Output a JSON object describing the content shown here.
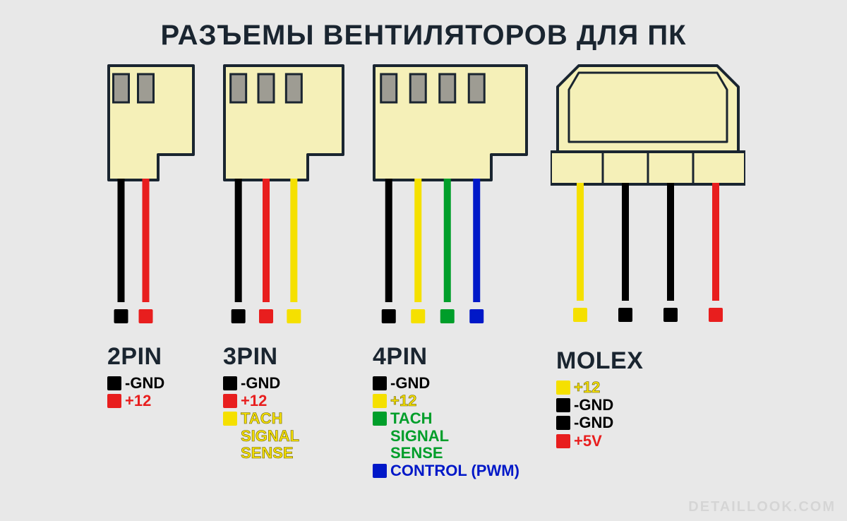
{
  "title": "РАЗЪЕМЫ ВЕНТИЛЯТОРОВ ДЛЯ ПК",
  "watermark": "DETAILLOOK.COM",
  "colors": {
    "background": "#e8e8e8",
    "title_color": "#1a2530",
    "connector_body": "#f5f0b8",
    "connector_stroke": "#1a2530",
    "pin_slot": "#9e9c93",
    "black": "#000000",
    "red": "#e81e1e",
    "yellow": "#f5e000",
    "green": "#009e2a",
    "blue": "#0018c8"
  },
  "stroke_width": 4,
  "wire_width": 10,
  "wire_length": 175,
  "square_size": 20,
  "connectors": [
    {
      "id": "2pin",
      "name": "2PIN",
      "type": "fan-header",
      "body_w": 120,
      "body_h": 162,
      "tab_w": 50,
      "wires": [
        {
          "color": "#000000",
          "label": "-GND",
          "label_color": "#000000"
        },
        {
          "color": "#e81e1e",
          "label": "+12",
          "label_color": "#e81e1e"
        }
      ]
    },
    {
      "id": "3pin",
      "name": "3PIN",
      "type": "fan-header",
      "body_w": 168,
      "body_h": 162,
      "tab_w": 50,
      "wires": [
        {
          "color": "#000000",
          "label": "-GND",
          "label_color": "#000000"
        },
        {
          "color": "#e81e1e",
          "label": "+12",
          "label_color": "#e81e1e"
        },
        {
          "color": "#f5e000",
          "label": "TACH\nSIGNAL\nSENSE",
          "label_color": "#f5e000",
          "stroke_text": true
        }
      ]
    },
    {
      "id": "4pin",
      "name": "4PIN",
      "type": "fan-header",
      "body_w": 216,
      "body_h": 162,
      "tab_w": 50,
      "wires": [
        {
          "color": "#000000",
          "label": "-GND",
          "label_color": "#000000"
        },
        {
          "color": "#f5e000",
          "label": "+12",
          "label_color": "#f5e000",
          "stroke_text": true
        },
        {
          "color": "#009e2a",
          "label": "TACH\nSIGNAL\nSENSE",
          "label_color": "#009e2a"
        },
        {
          "color": "#0018c8",
          "label": "CONTROL (PWM)",
          "label_color": "#0018c8"
        }
      ]
    },
    {
      "id": "molex",
      "name": "MOLEX",
      "type": "molex",
      "body_w": 256,
      "body_h": 168,
      "wires": [
        {
          "color": "#f5e000",
          "label": "+12",
          "label_color": "#f5e000",
          "stroke_text": true
        },
        {
          "color": "#000000",
          "label": "-GND",
          "label_color": "#000000"
        },
        {
          "color": "#000000",
          "label": "-GND",
          "label_color": "#000000"
        },
        {
          "color": "#e81e1e",
          "label": "+5V",
          "label_color": "#e81e1e"
        }
      ]
    }
  ]
}
